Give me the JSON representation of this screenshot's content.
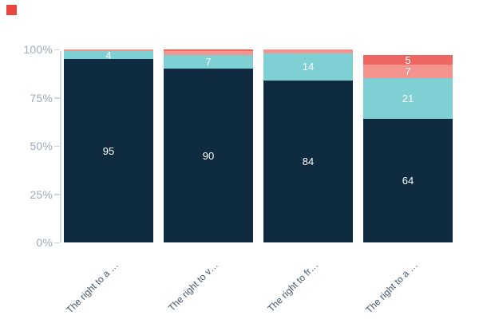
{
  "brand": {
    "logo_square_color": "#e8463f"
  },
  "chart_data": {
    "type": "bar",
    "variant": "stacked-percent-column",
    "title": "",
    "xlabel": "",
    "ylabel": "",
    "legend": {
      "visible": false
    },
    "grid": false,
    "categories": [
      "The right to a …",
      "The right to v…",
      "The right to fr…",
      "The right to a …"
    ],
    "series": [
      {
        "name": "segment-dark-navy",
        "color": "#0f2b40",
        "values": [
          95,
          90,
          84,
          64
        ]
      },
      {
        "name": "segment-teal",
        "color": "#7ed0d4",
        "values": [
          4,
          7,
          14,
          21
        ]
      },
      {
        "name": "segment-salmon",
        "color": "#f4948f",
        "values": [
          1,
          2,
          2,
          7
        ]
      },
      {
        "name": "segment-red",
        "color": "#ee6562",
        "values": [
          0,
          1,
          0,
          5
        ]
      }
    ],
    "stack_order": "bottom-to-top as listed",
    "value_labels_visible": [
      [
        95,
        4
      ],
      [
        90,
        7
      ],
      [
        84,
        14
      ],
      [
        64,
        21,
        7,
        5
      ]
    ],
    "show_value_label_min": 4,
    "y_axis": {
      "range": [
        0,
        100
      ],
      "tick_values": [
        0,
        25,
        50,
        75,
        100
      ],
      "tick_labels": [
        "0%",
        "25%",
        "50%",
        "75%",
        "100%"
      ]
    },
    "styles": {
      "value_label_color": "#ffffff",
      "y_tick_label_color": "#9cabb9",
      "x_label_color": "#44566a",
      "axis_line_color": "#ccd8e0"
    }
  }
}
